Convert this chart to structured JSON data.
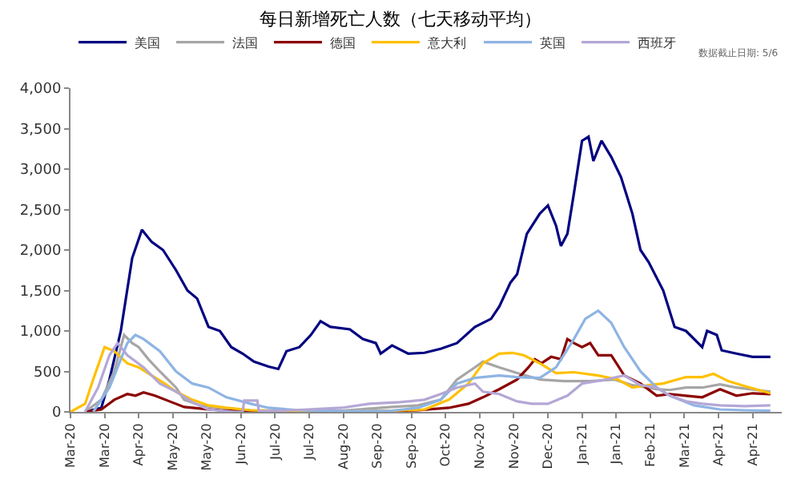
{
  "chart_data": {
    "type": "line",
    "title": "每日新增死亡人数（七天移动平均）",
    "annotations": [
      "数据截止日期: 5/6"
    ],
    "legend": "top",
    "grid": false,
    "marker": "none",
    "line_style": "solid",
    "ylim": [
      0,
      4000
    ],
    "yticks": [
      {
        "value": 0,
        "label": "0"
      },
      {
        "value": 500,
        "label": "500"
      },
      {
        "value": 1000,
        "label": "1,000"
      },
      {
        "value": 1500,
        "label": "1,500"
      },
      {
        "value": 2000,
        "label": "2,000"
      },
      {
        "value": 2500,
        "label": "2,500"
      },
      {
        "value": 3000,
        "label": "3,000"
      },
      {
        "value": 3500,
        "label": "3,500"
      },
      {
        "value": 4000,
        "label": "4,000"
      }
    ],
    "xlim": [
      "2020-03-01",
      "2021-05-13"
    ],
    "xticks": [
      {
        "value": "2020-03-01",
        "label": "Mar-20"
      },
      {
        "value": "2020-03-22",
        "label": "Mar-20"
      },
      {
        "value": "2020-04-12",
        "label": "Apr-20"
      },
      {
        "value": "2020-05-03",
        "label": "May-20"
      },
      {
        "value": "2020-05-24",
        "label": "May-20"
      },
      {
        "value": "2020-06-14",
        "label": "Jun-20"
      },
      {
        "value": "2020-07-05",
        "label": "Jul-20"
      },
      {
        "value": "2020-07-26",
        "label": "Jul-20"
      },
      {
        "value": "2020-08-16",
        "label": "Aug-20"
      },
      {
        "value": "2020-09-06",
        "label": "Sep-20"
      },
      {
        "value": "2020-09-27",
        "label": "Sep-20"
      },
      {
        "value": "2020-10-18",
        "label": "Oct-20"
      },
      {
        "value": "2020-11-08",
        "label": "Nov-20"
      },
      {
        "value": "2020-11-29",
        "label": "Nov-20"
      },
      {
        "value": "2020-12-20",
        "label": "Dec-20"
      },
      {
        "value": "2021-01-10",
        "label": "Jan-21"
      },
      {
        "value": "2021-01-31",
        "label": "Jan-21"
      },
      {
        "value": "2021-02-21",
        "label": "Feb-21"
      },
      {
        "value": "2021-03-14",
        "label": "Mar-21"
      },
      {
        "value": "2021-04-04",
        "label": "Apr-21"
      },
      {
        "value": "2021-04-25",
        "label": "Apr-21"
      }
    ],
    "series": [
      {
        "name": "美国",
        "color": "#000080",
        "x": [
          "2020-03-10",
          "2020-03-20",
          "2020-03-25",
          "2020-04-01",
          "2020-04-08",
          "2020-04-14",
          "2020-04-20",
          "2020-04-27",
          "2020-05-05",
          "2020-05-12",
          "2020-05-18",
          "2020-05-25",
          "2020-06-01",
          "2020-06-08",
          "2020-06-15",
          "2020-06-22",
          "2020-07-01",
          "2020-07-07",
          "2020-07-12",
          "2020-07-20",
          "2020-07-27",
          "2020-08-02",
          "2020-08-08",
          "2020-08-20",
          "2020-08-28",
          "2020-09-05",
          "2020-09-08",
          "2020-09-15",
          "2020-09-25",
          "2020-10-05",
          "2020-10-15",
          "2020-10-25",
          "2020-11-05",
          "2020-11-15",
          "2020-11-20",
          "2020-11-27",
          "2020-12-01",
          "2020-12-07",
          "2020-12-15",
          "2020-12-20",
          "2020-12-25",
          "2020-12-28",
          "2021-01-01",
          "2021-01-05",
          "2021-01-10",
          "2021-01-14",
          "2021-01-17",
          "2021-01-22",
          "2021-01-28",
          "2021-02-03",
          "2021-02-10",
          "2021-02-15",
          "2021-02-20",
          "2021-03-01",
          "2021-03-08",
          "2021-03-15",
          "2021-03-25",
          "2021-03-28",
          "2021-04-03",
          "2021-04-06",
          "2021-04-15",
          "2021-04-25",
          "2021-05-06"
        ],
        "values": [
          0,
          50,
          400,
          1000,
          1900,
          2250,
          2100,
          2000,
          1750,
          1500,
          1400,
          1050,
          1000,
          800,
          720,
          620,
          560,
          530,
          750,
          800,
          950,
          1120,
          1050,
          1020,
          900,
          850,
          720,
          820,
          720,
          730,
          780,
          850,
          1050,
          1150,
          1300,
          1600,
          1700,
          2200,
          2450,
          2550,
          2300,
          2050,
          2200,
          2700,
          3350,
          3400,
          3100,
          3350,
          3150,
          2900,
          2450,
          2000,
          1850,
          1500,
          1050,
          1000,
          800,
          1000,
          950,
          760,
          720,
          680,
          680
        ]
      },
      {
        "name": "法国",
        "color": "#a6a6a6",
        "x": [
          "2020-03-10",
          "2020-03-20",
          "2020-03-28",
          "2020-04-03",
          "2020-04-08",
          "2020-04-12",
          "2020-04-18",
          "2020-04-25",
          "2020-05-05",
          "2020-05-10",
          "2020-05-20",
          "2020-06-01",
          "2020-06-20",
          "2020-07-15",
          "2020-08-15",
          "2020-09-15",
          "2020-10-01",
          "2020-10-15",
          "2020-10-25",
          "2020-11-05",
          "2020-11-10",
          "2020-11-20",
          "2020-12-01",
          "2020-12-15",
          "2020-12-30",
          "2021-01-15",
          "2021-01-30",
          "2021-02-10",
          "2021-02-25",
          "2021-03-05",
          "2021-03-15",
          "2021-03-25",
          "2021-04-05",
          "2021-04-15",
          "2021-05-06"
        ],
        "values": [
          0,
          150,
          500,
          950,
          850,
          800,
          650,
          500,
          300,
          150,
          80,
          50,
          20,
          15,
          15,
          60,
          80,
          150,
          400,
          550,
          620,
          550,
          480,
          400,
          380,
          380,
          400,
          330,
          280,
          270,
          300,
          300,
          340,
          300,
          250
        ]
      },
      {
        "name": "德国",
        "color": "#8b0000",
        "x": [
          "2020-03-10",
          "2020-03-20",
          "2020-03-28",
          "2020-04-05",
          "2020-04-10",
          "2020-04-15",
          "2020-04-22",
          "2020-05-01",
          "2020-05-10",
          "2020-05-20",
          "2020-06-01",
          "2020-06-15",
          "2020-07-01",
          "2020-09-01",
          "2020-10-01",
          "2020-10-20",
          "2020-11-01",
          "2020-11-10",
          "2020-11-20",
          "2020-12-01",
          "2020-12-08",
          "2020-12-12",
          "2020-12-16",
          "2020-12-22",
          "2020-12-28",
          "2021-01-01",
          "2021-01-05",
          "2021-01-10",
          "2021-01-15",
          "2021-01-20",
          "2021-01-28",
          "2021-02-05",
          "2021-02-15",
          "2021-02-25",
          "2021-03-05",
          "2021-03-15",
          "2021-03-25",
          "2021-04-05",
          "2021-04-15",
          "2021-04-25",
          "2021-05-06"
        ],
        "values": [
          0,
          30,
          150,
          220,
          200,
          240,
          200,
          130,
          60,
          40,
          20,
          10,
          5,
          5,
          20,
          50,
          100,
          180,
          280,
          400,
          550,
          650,
          600,
          680,
          650,
          900,
          850,
          800,
          850,
          700,
          700,
          450,
          350,
          200,
          220,
          200,
          180,
          280,
          200,
          230,
          220
        ]
      },
      {
        "name": "意大利",
        "color": "#ffc000",
        "x": [
          "2020-03-01",
          "2020-03-10",
          "2020-03-15",
          "2020-03-22",
          "2020-03-28",
          "2020-04-05",
          "2020-04-12",
          "2020-04-20",
          "2020-04-28",
          "2020-05-05",
          "2020-05-15",
          "2020-05-25",
          "2020-06-05",
          "2020-06-20",
          "2020-07-15",
          "2020-08-15",
          "2020-09-15",
          "2020-10-05",
          "2020-10-20",
          "2020-11-01",
          "2020-11-10",
          "2020-11-20",
          "2020-11-28",
          "2020-12-05",
          "2020-12-15",
          "2020-12-25",
          "2021-01-05",
          "2021-01-20",
          "2021-02-01",
          "2021-02-10",
          "2021-02-20",
          "2021-03-01",
          "2021-03-15",
          "2021-03-25",
          "2021-04-01",
          "2021-04-10",
          "2021-04-20",
          "2021-05-06"
        ],
        "values": [
          0,
          100,
          400,
          800,
          750,
          600,
          550,
          450,
          350,
          250,
          150,
          80,
          50,
          20,
          10,
          5,
          15,
          30,
          150,
          350,
          600,
          720,
          730,
          700,
          600,
          480,
          490,
          450,
          400,
          300,
          330,
          350,
          430,
          430,
          470,
          380,
          320,
          230
        ]
      },
      {
        "name": "英国",
        "color": "#8eb4e3",
        "x": [
          "2020-03-15",
          "2020-03-25",
          "2020-04-05",
          "2020-04-10",
          "2020-04-15",
          "2020-04-25",
          "2020-05-05",
          "2020-05-15",
          "2020-05-25",
          "2020-06-05",
          "2020-06-20",
          "2020-07-01",
          "2020-07-20",
          "2020-08-15",
          "2020-09-15",
          "2020-10-01",
          "2020-10-15",
          "2020-10-25",
          "2020-11-05",
          "2020-11-20",
          "2020-12-01",
          "2020-12-15",
          "2020-12-25",
          "2021-01-05",
          "2021-01-12",
          "2021-01-20",
          "2021-01-28",
          "2021-02-05",
          "2021-02-15",
          "2021-02-25",
          "2021-03-05",
          "2021-03-20",
          "2021-04-05",
          "2021-04-20",
          "2021-05-06"
        ],
        "values": [
          0,
          300,
          850,
          950,
          900,
          750,
          500,
          350,
          300,
          180,
          100,
          50,
          20,
          10,
          15,
          50,
          150,
          350,
          420,
          450,
          430,
          420,
          550,
          900,
          1150,
          1250,
          1100,
          800,
          500,
          300,
          200,
          80,
          30,
          20,
          15
        ]
      },
      {
        "name": "西班牙",
        "color": "#b4a7d6",
        "x": [
          "2020-03-10",
          "2020-03-18",
          "2020-03-25",
          "2020-03-30",
          "2020-04-05",
          "2020-04-15",
          "2020-04-25",
          "2020-05-05",
          "2020-05-15",
          "2020-05-25",
          "2020-06-10",
          "2020-06-15",
          "2020-06-16",
          "2020-06-24",
          "2020-06-25",
          "2020-07-15",
          "2020-08-15",
          "2020-09-01",
          "2020-09-20",
          "2020-10-05",
          "2020-10-15",
          "2020-10-25",
          "2020-11-05",
          "2020-11-10",
          "2020-11-20",
          "2020-12-01",
          "2020-12-10",
          "2020-12-20",
          "2021-01-01",
          "2021-01-10",
          "2021-01-25",
          "2021-02-05",
          "2021-02-15",
          "2021-02-25",
          "2021-03-05",
          "2021-03-15",
          "2021-03-25",
          "2021-04-05",
          "2021-04-20",
          "2021-05-06"
        ],
        "values": [
          0,
          300,
          700,
          850,
          700,
          550,
          350,
          250,
          120,
          30,
          0,
          0,
          140,
          140,
          10,
          20,
          50,
          100,
          120,
          150,
          220,
          300,
          350,
          250,
          220,
          130,
          100,
          100,
          200,
          350,
          400,
          450,
          330,
          300,
          200,
          130,
          100,
          80,
          70,
          80
        ]
      }
    ]
  }
}
